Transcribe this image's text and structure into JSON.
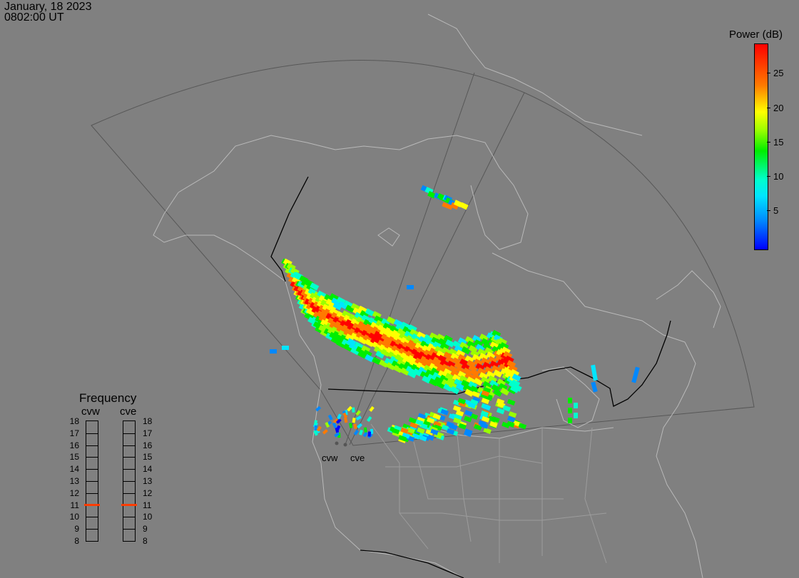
{
  "header": {
    "date": "January, 18 2023",
    "time": "0802:00 UT"
  },
  "colorbar": {
    "title": "Power (dB)",
    "ticks": [
      "25",
      "20",
      "15",
      "10",
      "5"
    ],
    "range": [
      0,
      30
    ]
  },
  "frequency": {
    "title": "Frequency",
    "radars": [
      "cvw",
      "cve"
    ],
    "levels": [
      "18",
      "17",
      "16",
      "15",
      "14",
      "13",
      "12",
      "11",
      "10",
      "9",
      "8"
    ],
    "selected": {
      "cvw": 11,
      "cve": 11
    },
    "marker_color": "#ff3c00"
  },
  "sites": {
    "west_label": "cvw",
    "east_label": "cve"
  },
  "colors": {
    "background": "#808080",
    "coastline": "#b4b4b4",
    "fov": "#555555"
  }
}
